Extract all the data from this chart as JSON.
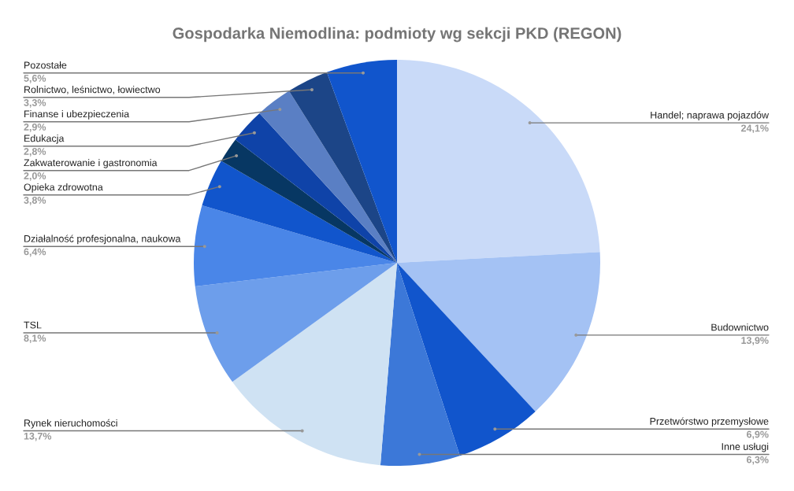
{
  "chart_data": {
    "type": "pie",
    "title": "Gospodarka Niemodlina: podmioty wg sekcji PKD (REGON)",
    "categories": [
      "Handel; naprawa pojazdów",
      "Budownictwo",
      "Przetwórstwo przemysłowe",
      "Inne usługi",
      "Rynek nieruchomości",
      "TSL",
      "Działalność profesjonalna, naukowa",
      "Opieka zdrowotna",
      "Zakwaterowanie i gastronomia",
      "Edukacja",
      "Finanse i ubezpieczenia",
      "Rolnictwo, leśnictwo, łowiectwo",
      "Pozostałe"
    ],
    "values": [
      24.1,
      13.9,
      6.9,
      6.3,
      13.7,
      8.1,
      6.4,
      3.8,
      2.0,
      2.8,
      2.9,
      3.3,
      5.6
    ],
    "value_labels": [
      "24,1%",
      "13,9%",
      "6,9%",
      "6,3%",
      "13,7%",
      "8,1%",
      "6,4%",
      "3,8%",
      "2,0%",
      "2,8%",
      "2,9%",
      "3,3%",
      "5,6%"
    ],
    "colors": [
      "#c9daf8",
      "#a4c2f4",
      "#1155cc",
      "#3c78d8",
      "#cfe2f3",
      "#6d9eeb",
      "#4a86e8",
      "#1155cc",
      "#073763",
      "#0f43a8",
      "#5a7fc4",
      "#1c4587",
      "#1155cc"
    ]
  }
}
